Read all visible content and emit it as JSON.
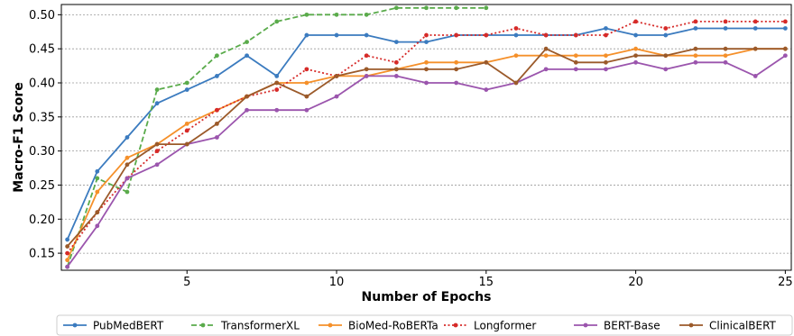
{
  "chart_data": {
    "type": "line",
    "title": "",
    "xlabel": "Number of Epochs",
    "ylabel": "Macro-F1 Score",
    "xlim": [
      0.8,
      25.2
    ],
    "ylim": [
      0.125,
      0.515
    ],
    "xticks": [
      5,
      10,
      15,
      20,
      25
    ],
    "yticks": [
      0.15,
      0.2,
      0.25,
      0.3,
      0.35,
      0.4,
      0.45,
      0.5
    ],
    "ytick_labels": [
      "0.15",
      "0.20",
      "0.25",
      "0.30",
      "0.35",
      "0.40",
      "0.45",
      "0.50"
    ],
    "grid": "horizontal dashed",
    "legend_placement": "bottom",
    "series": [
      {
        "name": "PubMedBERT",
        "color": "#3b7bbf",
        "dash": "solid",
        "x": [
          1,
          2,
          3,
          4,
          5,
          6,
          7,
          8,
          9,
          10,
          11,
          12,
          13,
          14,
          15,
          16,
          17,
          18,
          19,
          20,
          21,
          22,
          23,
          24,
          25
        ],
        "y": [
          0.17,
          0.27,
          0.32,
          0.37,
          0.39,
          0.41,
          0.44,
          0.41,
          0.47,
          0.47,
          0.47,
          0.46,
          0.46,
          0.47,
          0.47,
          0.47,
          0.47,
          0.47,
          0.48,
          0.47,
          0.47,
          0.48,
          0.48,
          0.48,
          0.48
        ]
      },
      {
        "name": "TransformerXL",
        "color": "#5aab4b",
        "dash": "dashed",
        "x": [
          1,
          2,
          3,
          4,
          5,
          6,
          7,
          8,
          9,
          10,
          11,
          12,
          13,
          14,
          15
        ],
        "y": [
          0.13,
          0.26,
          0.24,
          0.39,
          0.4,
          0.44,
          0.46,
          0.49,
          0.5,
          0.5,
          0.5,
          0.51,
          0.51,
          0.51,
          0.51
        ]
      },
      {
        "name": "BioMed-RoBERTa",
        "color": "#f5902a",
        "dash": "solid",
        "x": [
          1,
          2,
          3,
          4,
          5,
          6,
          7,
          8,
          9,
          10,
          11,
          12,
          13,
          14,
          15,
          16,
          17,
          18,
          19,
          20,
          21,
          22,
          23,
          24,
          25
        ],
        "y": [
          0.14,
          0.24,
          0.29,
          0.31,
          0.34,
          0.36,
          0.38,
          0.4,
          0.4,
          0.41,
          0.41,
          0.42,
          0.43,
          0.43,
          0.43,
          0.44,
          0.44,
          0.44,
          0.44,
          0.45,
          0.44,
          0.44,
          0.44,
          0.45,
          0.45
        ]
      },
      {
        "name": "Longformer",
        "color": "#d62a28",
        "dash": "dotted",
        "x": [
          1,
          2,
          3,
          4,
          5,
          6,
          7,
          8,
          9,
          10,
          11,
          12,
          13,
          14,
          15,
          16,
          17,
          18,
          19,
          20,
          21,
          22,
          23,
          24,
          25
        ],
        "y": [
          0.15,
          0.21,
          0.26,
          0.3,
          0.33,
          0.36,
          0.38,
          0.39,
          0.42,
          0.41,
          0.44,
          0.43,
          0.47,
          0.47,
          0.47,
          0.48,
          0.47,
          0.47,
          0.47,
          0.49,
          0.48,
          0.49,
          0.49,
          0.49,
          0.49
        ]
      },
      {
        "name": "BERT-Base",
        "color": "#9b55ad",
        "dash": "solid",
        "x": [
          1,
          2,
          3,
          4,
          5,
          6,
          7,
          8,
          9,
          10,
          11,
          12,
          13,
          14,
          15,
          16,
          17,
          18,
          19,
          20,
          21,
          22,
          23,
          24,
          25
        ],
        "y": [
          0.13,
          0.19,
          0.26,
          0.28,
          0.31,
          0.32,
          0.36,
          0.36,
          0.36,
          0.38,
          0.41,
          0.41,
          0.4,
          0.4,
          0.39,
          0.4,
          0.42,
          0.42,
          0.42,
          0.43,
          0.42,
          0.43,
          0.43,
          0.41,
          0.44
        ]
      },
      {
        "name": "ClinicalBERT",
        "color": "#9b5a2a",
        "dash": "solid",
        "x": [
          1,
          2,
          3,
          4,
          5,
          6,
          7,
          8,
          9,
          10,
          11,
          12,
          13,
          14,
          15,
          16,
          17,
          18,
          19,
          20,
          21,
          22,
          23,
          24,
          25
        ],
        "y": [
          0.16,
          0.21,
          0.28,
          0.31,
          0.31,
          0.34,
          0.38,
          0.4,
          0.38,
          0.41,
          0.42,
          0.42,
          0.42,
          0.42,
          0.43,
          0.4,
          0.45,
          0.43,
          0.43,
          0.44,
          0.44,
          0.45,
          0.45,
          0.45,
          0.45
        ]
      }
    ]
  }
}
